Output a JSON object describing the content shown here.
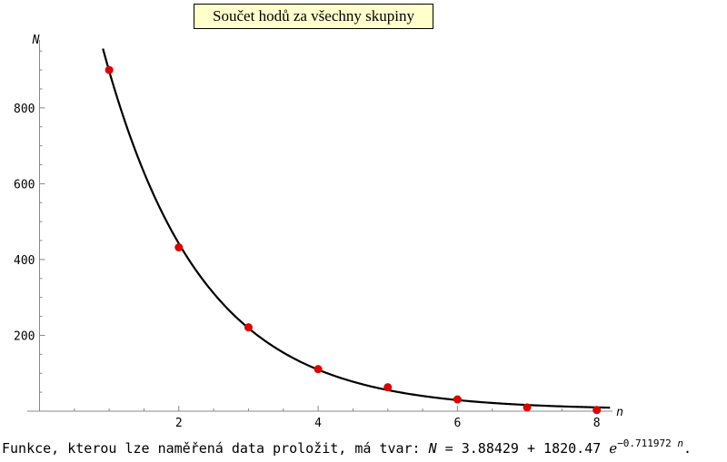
{
  "chart_data": {
    "type": "scatter",
    "title": "Součet hodů za všechny skupiny",
    "xlabel": "n",
    "ylabel": "N",
    "xlim": [
      -0.15,
      8.2
    ],
    "ylim": [
      0,
      960
    ],
    "x_ticks": [
      2,
      4,
      6,
      8
    ],
    "y_ticks": [
      200,
      400,
      600,
      800
    ],
    "x_tick_labels": [
      "2",
      "4",
      "6",
      "8"
    ],
    "y_tick_labels": [
      "200",
      "400",
      "600",
      "800"
    ],
    "grid": false,
    "series": [
      {
        "kind": "points",
        "color": "#dd0000",
        "x": [
          1,
          2,
          3,
          4,
          5,
          6,
          7,
          8
        ],
        "y": [
          900,
          432,
          221,
          111,
          63,
          31,
          10,
          3
        ]
      },
      {
        "kind": "fit-curve",
        "color": "#000000",
        "formula": "N = 3.88429 + 1820.47 e^(-0.711972 n)",
        "a": 3.88429,
        "b": 1820.47,
        "k": -0.711972
      }
    ]
  },
  "caption": {
    "prefix": "Funkce, kterou lze naměřená data proložit, má tvar: ",
    "var_N": "N",
    "equals": " = 3.88429 + 1820.47 ",
    "e": "ℯ",
    "exponent_num": "−0.711972",
    "exponent_var": "n",
    "suffix": "."
  }
}
